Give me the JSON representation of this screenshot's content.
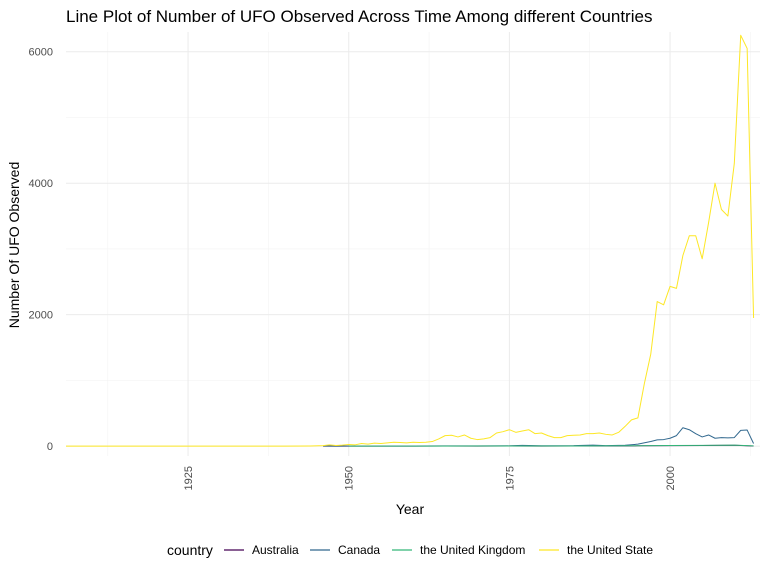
{
  "chart_data": {
    "type": "line",
    "title": "Line Plot of Number of UFO Observed Across Time Among different Countries",
    "xlabel": "Year",
    "ylabel": "Number Of UFO Observed",
    "xlim": [
      1906,
      2014
    ],
    "ylim": [
      -150,
      6300
    ],
    "x_ticks": [
      1925,
      1950,
      1975,
      2000
    ],
    "y_ticks": [
      0,
      2000,
      4000,
      6000
    ],
    "grid": true,
    "legend_title": "country",
    "legend_position": "bottom",
    "series": [
      {
        "name": "Australia",
        "color": "#440154",
        "points": [
          [
            1946,
            0
          ],
          [
            1950,
            1
          ],
          [
            1955,
            1
          ],
          [
            1960,
            1
          ],
          [
            1965,
            2
          ],
          [
            1970,
            1
          ],
          [
            1975,
            2
          ],
          [
            1980,
            1
          ],
          [
            1985,
            2
          ],
          [
            1990,
            3
          ],
          [
            1995,
            5
          ],
          [
            2000,
            8
          ],
          [
            2005,
            10
          ],
          [
            2010,
            14
          ],
          [
            2013,
            3
          ]
        ]
      },
      {
        "name": "Canada",
        "color": "#31688e",
        "points": [
          [
            1946,
            3
          ],
          [
            1948,
            0
          ],
          [
            1950,
            2
          ],
          [
            1955,
            2
          ],
          [
            1960,
            3
          ],
          [
            1965,
            4
          ],
          [
            1970,
            4
          ],
          [
            1975,
            5
          ],
          [
            1977,
            12
          ],
          [
            1980,
            5
          ],
          [
            1985,
            7
          ],
          [
            1988,
            15
          ],
          [
            1990,
            8
          ],
          [
            1993,
            14
          ],
          [
            1995,
            30
          ],
          [
            1997,
            70
          ],
          [
            1998,
            95
          ],
          [
            1999,
            100
          ],
          [
            2000,
            120
          ],
          [
            2001,
            160
          ],
          [
            2002,
            280
          ],
          [
            2003,
            250
          ],
          [
            2004,
            190
          ],
          [
            2005,
            140
          ],
          [
            2006,
            170
          ],
          [
            2007,
            120
          ],
          [
            2008,
            130
          ],
          [
            2009,
            125
          ],
          [
            2010,
            130
          ],
          [
            2011,
            240
          ],
          [
            2012,
            245
          ],
          [
            2013,
            40
          ]
        ]
      },
      {
        "name": "the United Kingdom",
        "color": "#35b779",
        "points": [
          [
            1950,
            1
          ],
          [
            1960,
            1
          ],
          [
            1970,
            2
          ],
          [
            1975,
            3
          ],
          [
            1980,
            2
          ],
          [
            1985,
            3
          ],
          [
            1990,
            4
          ],
          [
            1995,
            6
          ],
          [
            2000,
            10
          ],
          [
            2005,
            12
          ],
          [
            2010,
            15
          ],
          [
            2013,
            4
          ]
        ]
      },
      {
        "name": "the United State",
        "color": "#fde725",
        "points": [
          [
            1906,
            1
          ],
          [
            1910,
            1
          ],
          [
            1920,
            1
          ],
          [
            1930,
            1
          ],
          [
            1940,
            1
          ],
          [
            1944,
            3
          ],
          [
            1946,
            8
          ],
          [
            1947,
            20
          ],
          [
            1948,
            10
          ],
          [
            1949,
            15
          ],
          [
            1950,
            25
          ],
          [
            1951,
            20
          ],
          [
            1952,
            40
          ],
          [
            1953,
            30
          ],
          [
            1954,
            45
          ],
          [
            1955,
            40
          ],
          [
            1956,
            50
          ],
          [
            1957,
            60
          ],
          [
            1958,
            55
          ],
          [
            1959,
            50
          ],
          [
            1960,
            60
          ],
          [
            1961,
            55
          ],
          [
            1962,
            60
          ],
          [
            1963,
            70
          ],
          [
            1964,
            110
          ],
          [
            1965,
            160
          ],
          [
            1966,
            165
          ],
          [
            1967,
            140
          ],
          [
            1968,
            170
          ],
          [
            1969,
            120
          ],
          [
            1970,
            100
          ],
          [
            1971,
            110
          ],
          [
            1972,
            130
          ],
          [
            1973,
            200
          ],
          [
            1974,
            220
          ],
          [
            1975,
            250
          ],
          [
            1976,
            210
          ],
          [
            1977,
            230
          ],
          [
            1978,
            250
          ],
          [
            1979,
            190
          ],
          [
            1980,
            200
          ],
          [
            1981,
            160
          ],
          [
            1982,
            130
          ],
          [
            1983,
            130
          ],
          [
            1984,
            160
          ],
          [
            1985,
            165
          ],
          [
            1986,
            170
          ],
          [
            1987,
            190
          ],
          [
            1988,
            190
          ],
          [
            1989,
            200
          ],
          [
            1990,
            180
          ],
          [
            1991,
            170
          ],
          [
            1992,
            210
          ],
          [
            1993,
            300
          ],
          [
            1994,
            400
          ],
          [
            1995,
            430
          ],
          [
            1996,
            950
          ],
          [
            1997,
            1400
          ],
          [
            1998,
            2200
          ],
          [
            1999,
            2150
          ],
          [
            2000,
            2430
          ],
          [
            2001,
            2400
          ],
          [
            2002,
            2900
          ],
          [
            2003,
            3200
          ],
          [
            2004,
            3200
          ],
          [
            2005,
            2850
          ],
          [
            2006,
            3400
          ],
          [
            2007,
            4000
          ],
          [
            2008,
            3600
          ],
          [
            2009,
            3500
          ],
          [
            2010,
            4300
          ],
          [
            2011,
            6250
          ],
          [
            2012,
            6050
          ],
          [
            2013,
            1950
          ]
        ]
      }
    ]
  }
}
